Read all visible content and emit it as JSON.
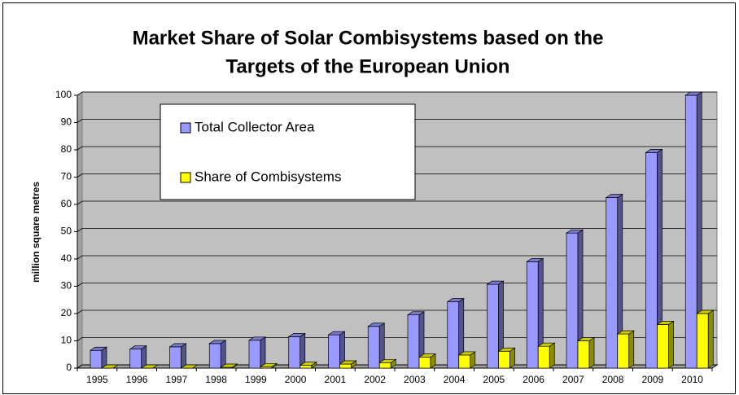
{
  "chart_data": {
    "type": "bar3d",
    "title": "Market Share of Solar Combisystems based on the",
    "title_line2": "Targets of the European Union",
    "ylabel": "million square metres",
    "categories": [
      "1995",
      "1996",
      "1997",
      "1998",
      "1999",
      "2000",
      "2001",
      "2002",
      "2003",
      "2004",
      "2005",
      "2006",
      "2007",
      "2008",
      "2009",
      "2010"
    ],
    "series": [
      {
        "name": "Total Collector Area",
        "color": "#9999ff",
        "values": [
          6.5,
          7,
          7.8,
          9,
          10.2,
          11.5,
          12.2,
          15.3,
          19.5,
          24.3,
          30.7,
          39,
          49.5,
          62.5,
          79,
          100
        ]
      },
      {
        "name": "Share of Combisystems",
        "color": "#ffff00",
        "values": [
          0,
          0,
          0,
          0.3,
          0.5,
          1,
          1.5,
          2,
          4,
          4.8,
          6.2,
          8,
          10,
          12.5,
          16,
          20
        ]
      }
    ],
    "ylim": [
      0,
      100
    ],
    "yticks": [
      0,
      10,
      20,
      30,
      40,
      50,
      60,
      70,
      80,
      90,
      100
    ],
    "grid": true,
    "legend": "upper left"
  }
}
